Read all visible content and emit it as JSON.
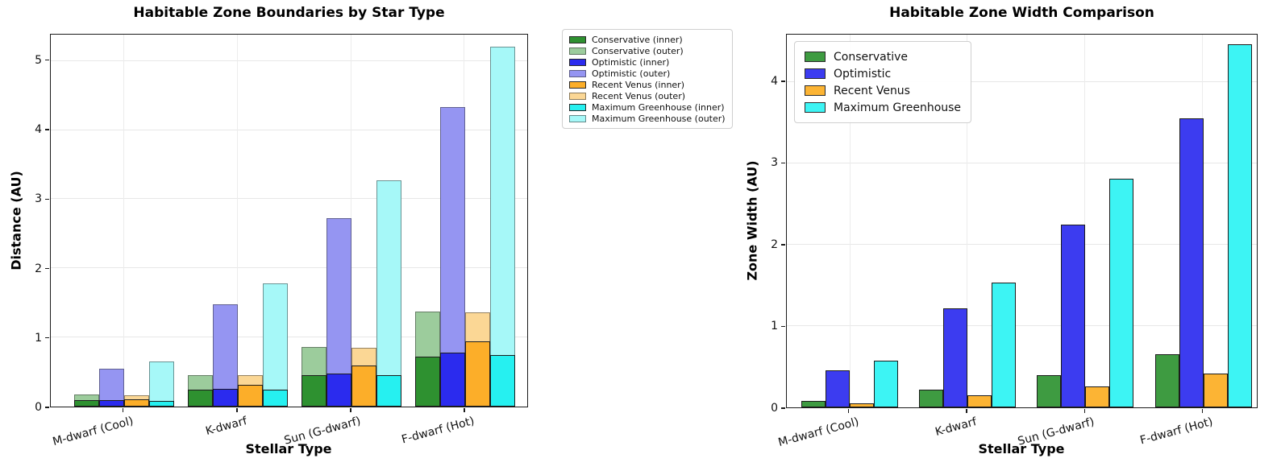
{
  "figure": {
    "background": "#ffffff"
  },
  "chart_data": [
    {
      "type": "bar",
      "variant": "overlaid-inner-outer-pairs",
      "title": "Habitable Zone Boundaries by Star Type",
      "xlabel": "Stellar Type",
      "ylabel": "Distance (AU)",
      "categories": [
        "M-dwarf (Cool)",
        "K-dwarf",
        "Sun (G-dwarf)",
        "F-dwarf (Hot)"
      ],
      "ylim": [
        0,
        5.38
      ],
      "yticks": [
        0,
        1,
        2,
        3,
        4,
        5
      ],
      "grid": true,
      "legend_position": "outside-top-right",
      "units": "AU",
      "edge_color": "#1c1c1c",
      "outer_edge_color": "rgba(45,45,45,0.5)",
      "series": [
        {
          "name": "Conservative (inner)",
          "color": "#2e9130",
          "values": [
            0.09,
            0.24,
            0.46,
            0.72
          ]
        },
        {
          "name": "Conservative (outer)",
          "color": "#9ccc9c",
          "values": [
            0.17,
            0.46,
            0.86,
            1.37
          ]
        },
        {
          "name": "Optimistic (inner)",
          "color": "#2b2bee",
          "values": [
            0.09,
            0.26,
            0.48,
            0.78
          ]
        },
        {
          "name": "Optimistic (outer)",
          "color": "#9595f2",
          "values": [
            0.55,
            1.48,
            2.73,
            4.33
          ]
        },
        {
          "name": "Recent Venus (inner)",
          "color": "#fcae29",
          "values": [
            0.11,
            0.31,
            0.59,
            0.94
          ]
        },
        {
          "name": "Recent Venus (outer)",
          "color": "#fbd795",
          "values": [
            0.16,
            0.46,
            0.85,
            1.36
          ]
        },
        {
          "name": "Maximum Greenhouse (inner)",
          "color": "#26f0f0",
          "values": [
            0.08,
            0.25,
            0.46,
            0.74
          ]
        },
        {
          "name": "Maximum Greenhouse (outer)",
          "color": "#a6f8f8",
          "values": [
            0.65,
            1.78,
            3.27,
            5.2
          ]
        }
      ]
    },
    {
      "type": "bar",
      "variant": "grouped",
      "title": "Habitable Zone Width Comparison",
      "xlabel": "Stellar Type",
      "ylabel": "Zone Width (AU)",
      "categories": [
        "M-dwarf (Cool)",
        "K-dwarf",
        "Sun (G-dwarf)",
        "F-dwarf (Hot)"
      ],
      "ylim": [
        0,
        4.58
      ],
      "yticks": [
        0,
        1,
        2,
        3,
        4
      ],
      "grid": true,
      "legend_position": "inside-top-left",
      "units": "AU",
      "edge_color": "#1c1c1c",
      "series": [
        {
          "name": "Conservative",
          "color": "#3e9b41",
          "values": [
            0.08,
            0.22,
            0.4,
            0.65
          ]
        },
        {
          "name": "Optimistic",
          "color": "#3c3cf0",
          "values": [
            0.46,
            1.22,
            2.25,
            3.55
          ]
        },
        {
          "name": "Recent Venus",
          "color": "#fcb434",
          "values": [
            0.05,
            0.15,
            0.26,
            0.42
          ]
        },
        {
          "name": "Maximum Greenhouse",
          "color": "#3df4f4",
          "values": [
            0.57,
            1.53,
            2.81,
            4.46
          ]
        }
      ]
    }
  ]
}
